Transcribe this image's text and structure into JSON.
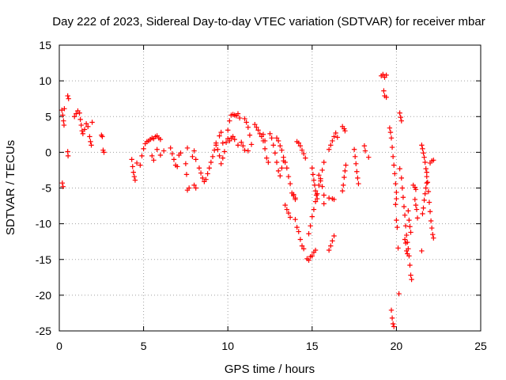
{
  "chart_data": {
    "type": "scatter",
    "title": "Day 222 of 2023, Sidereal Day-to-day VTEC variation (SDTVAR) for receiver mbar",
    "xlabel": "GPS time / hours",
    "ylabel": "SDTVAR / TECUs",
    "xlim": [
      0,
      25
    ],
    "ylim": [
      -25,
      15
    ],
    "x_ticks": [
      0,
      5,
      10,
      15,
      20,
      25
    ],
    "y_ticks": [
      15,
      10,
      5,
      0,
      -5,
      -10,
      -15,
      -20,
      -25
    ],
    "x_tick_labels": [
      "0",
      "5",
      "10",
      "15",
      "20",
      "25"
    ],
    "y_tick_labels": [
      "15",
      "10",
      "5",
      "0",
      "-5",
      "-10",
      "-15",
      "-20",
      "-25"
    ],
    "grid": true,
    "marker": "+",
    "series": [
      {
        "name": "SDTVAR",
        "color": "#ff0000",
        "points": [
          [
            0.15,
            5.9
          ],
          [
            0.2,
            5.2
          ],
          [
            0.25,
            4.4
          ],
          [
            0.28,
            3.8
          ],
          [
            0.3,
            6.1
          ],
          [
            0.18,
            -4.3
          ],
          [
            0.22,
            -4.8
          ],
          [
            0.5,
            7.9
          ],
          [
            0.55,
            7.5
          ],
          [
            0.5,
            0.1
          ],
          [
            0.52,
            -0.5
          ],
          [
            0.9,
            5.0
          ],
          [
            1.0,
            5.4
          ],
          [
            1.1,
            5.8
          ],
          [
            1.2,
            5.5
          ],
          [
            1.25,
            4.6
          ],
          [
            1.3,
            3.8
          ],
          [
            1.35,
            3.0
          ],
          [
            1.4,
            2.6
          ],
          [
            1.5,
            3.2
          ],
          [
            1.6,
            4.0
          ],
          [
            1.7,
            3.6
          ],
          [
            1.8,
            2.2
          ],
          [
            1.85,
            1.5
          ],
          [
            1.9,
            1.0
          ],
          [
            1.95,
            4.2
          ],
          [
            2.5,
            2.4
          ],
          [
            2.55,
            2.2
          ],
          [
            2.6,
            0.3
          ],
          [
            2.65,
            0.0
          ],
          [
            4.3,
            -1.0
          ],
          [
            4.35,
            -2.0
          ],
          [
            4.4,
            -2.8
          ],
          [
            4.45,
            -3.4
          ],
          [
            4.5,
            -3.9
          ],
          [
            4.6,
            -1.5
          ],
          [
            4.8,
            -1.8
          ],
          [
            4.9,
            -0.5
          ],
          [
            5.0,
            0.5
          ],
          [
            5.1,
            1.2
          ],
          [
            5.2,
            1.5
          ],
          [
            5.3,
            1.6
          ],
          [
            5.4,
            1.8
          ],
          [
            5.5,
            2.0
          ],
          [
            5.6,
            1.9
          ],
          [
            5.7,
            2.2
          ],
          [
            5.8,
            2.3
          ],
          [
            5.9,
            2.0
          ],
          [
            6.0,
            1.8
          ],
          [
            5.5,
            -0.5
          ],
          [
            5.6,
            -1.1
          ],
          [
            5.8,
            0.4
          ],
          [
            6.0,
            -0.4
          ],
          [
            6.2,
            0.2
          ],
          [
            6.6,
            0.6
          ],
          [
            6.7,
            -0.2
          ],
          [
            6.8,
            -1.0
          ],
          [
            6.9,
            -1.8
          ],
          [
            7.0,
            -2.0
          ],
          [
            7.1,
            -0.4
          ],
          [
            7.2,
            -0.1
          ],
          [
            7.5,
            -1.6
          ],
          [
            7.55,
            -3.1
          ],
          [
            7.6,
            -5.3
          ],
          [
            7.7,
            -5.0
          ],
          [
            7.6,
            0.6
          ],
          [
            7.9,
            -0.6
          ],
          [
            8.0,
            -4.6
          ],
          [
            8.1,
            -5.0
          ],
          [
            8.0,
            0.2
          ],
          [
            8.1,
            -1.0
          ],
          [
            8.3,
            -2.2
          ],
          [
            8.4,
            -2.9
          ],
          [
            8.5,
            -3.6
          ],
          [
            8.6,
            -4.1
          ],
          [
            8.7,
            -3.8
          ],
          [
            8.8,
            -3.0
          ],
          [
            8.9,
            -2.2
          ],
          [
            9.0,
            -1.4
          ],
          [
            9.1,
            -0.6
          ],
          [
            9.2,
            0.3
          ],
          [
            9.3,
            1.0
          ],
          [
            9.4,
            0.4
          ],
          [
            9.5,
            -0.5
          ],
          [
            9.6,
            -1.6
          ],
          [
            9.7,
            -0.8
          ],
          [
            9.3,
            1.3
          ],
          [
            9.5,
            2.3
          ],
          [
            9.6,
            2.8
          ],
          [
            9.7,
            1.3
          ],
          [
            9.8,
            0.1
          ],
          [
            9.9,
            1.4
          ],
          [
            10.0,
            3.1
          ],
          [
            10.1,
            4.4
          ],
          [
            10.2,
            5.2
          ],
          [
            10.3,
            5.3
          ],
          [
            10.4,
            5.2
          ],
          [
            10.5,
            5.1
          ],
          [
            10.6,
            5.4
          ],
          [
            10.7,
            4.8
          ],
          [
            10.0,
            1.9
          ],
          [
            10.1,
            1.6
          ],
          [
            10.2,
            2.0
          ],
          [
            10.3,
            2.2
          ],
          [
            10.4,
            1.8
          ],
          [
            10.6,
            1.0
          ],
          [
            10.8,
            1.4
          ],
          [
            10.9,
            0.9
          ],
          [
            11.0,
            0.3
          ],
          [
            11.0,
            4.7
          ],
          [
            11.1,
            4.2
          ],
          [
            11.2,
            3.5
          ],
          [
            11.3,
            2.4
          ],
          [
            11.4,
            1.1
          ],
          [
            11.2,
            0.2
          ],
          [
            11.6,
            3.9
          ],
          [
            11.7,
            3.5
          ],
          [
            11.8,
            3.1
          ],
          [
            11.9,
            2.6
          ],
          [
            12.0,
            2.2
          ],
          [
            12.1,
            1.6
          ],
          [
            12.2,
            0.5
          ],
          [
            12.3,
            -0.8
          ],
          [
            12.4,
            -1.4
          ],
          [
            12.1,
            2.5
          ],
          [
            12.2,
            1.6
          ],
          [
            12.5,
            2.6
          ],
          [
            12.6,
            2.0
          ],
          [
            12.7,
            1.0
          ],
          [
            12.8,
            -0.1
          ],
          [
            12.9,
            -1.4
          ],
          [
            13.0,
            -2.6
          ],
          [
            13.1,
            -3.3
          ],
          [
            13.2,
            -2.2
          ],
          [
            13.3,
            -1.2
          ],
          [
            12.9,
            2.0
          ],
          [
            13.0,
            1.6
          ],
          [
            13.1,
            0.9
          ],
          [
            13.2,
            0.3
          ],
          [
            13.3,
            -0.7
          ],
          [
            13.4,
            -1.4
          ],
          [
            13.5,
            -2.2
          ],
          [
            13.6,
            -3.4
          ],
          [
            13.7,
            -4.4
          ],
          [
            13.8,
            -5.7
          ],
          [
            13.9,
            -6.1
          ],
          [
            14.0,
            -6.4
          ],
          [
            13.4,
            -7.4
          ],
          [
            13.5,
            -8.0
          ],
          [
            13.6,
            -8.5
          ],
          [
            13.7,
            -9.1
          ],
          [
            13.9,
            -5.9
          ],
          [
            14.0,
            -6.6
          ],
          [
            14.0,
            -9.4
          ],
          [
            14.1,
            -10.5
          ],
          [
            14.2,
            -11.1
          ],
          [
            14.3,
            -12.2
          ],
          [
            14.4,
            -13.1
          ],
          [
            14.5,
            -13.5
          ],
          [
            14.1,
            1.5
          ],
          [
            14.2,
            1.3
          ],
          [
            14.3,
            0.9
          ],
          [
            14.4,
            0.3
          ],
          [
            14.5,
            -0.2
          ],
          [
            14.6,
            -0.8
          ],
          [
            14.7,
            -14.9
          ],
          [
            14.8,
            -15.1
          ],
          [
            14.9,
            -14.6
          ],
          [
            15.0,
            -14.5
          ],
          [
            15.1,
            -14.0
          ],
          [
            15.2,
            -13.7
          ],
          [
            14.8,
            -11.4
          ],
          [
            14.9,
            -10.3
          ],
          [
            15.0,
            -9.0
          ],
          [
            15.1,
            -8.0
          ],
          [
            15.2,
            -6.9
          ],
          [
            15.3,
            -5.8
          ],
          [
            15.4,
            -4.6
          ],
          [
            15.5,
            -3.7
          ],
          [
            15.6,
            -2.5
          ],
          [
            15.7,
            -1.4
          ],
          [
            15.0,
            -2.2
          ],
          [
            15.05,
            -3.1
          ],
          [
            15.1,
            -3.9
          ],
          [
            15.15,
            -4.6
          ],
          [
            15.2,
            -5.4
          ],
          [
            15.25,
            -6.0
          ],
          [
            15.3,
            -6.5
          ],
          [
            15.4,
            -3.2
          ],
          [
            15.5,
            -4.0
          ],
          [
            15.6,
            -4.8
          ],
          [
            15.7,
            -6.0
          ],
          [
            15.7,
            -7.2
          ],
          [
            16.0,
            -13.7
          ],
          [
            16.1,
            -13.1
          ],
          [
            16.2,
            -12.4
          ],
          [
            16.3,
            -11.7
          ],
          [
            16.0,
            -6.4
          ],
          [
            16.2,
            -6.5
          ],
          [
            16.3,
            -6.6
          ],
          [
            16.0,
            0.4
          ],
          [
            16.1,
            1.0
          ],
          [
            16.2,
            1.6
          ],
          [
            16.3,
            2.2
          ],
          [
            16.4,
            2.7
          ],
          [
            16.5,
            2.1
          ],
          [
            16.8,
            3.6
          ],
          [
            16.9,
            3.3
          ],
          [
            16.95,
            3.0
          ],
          [
            16.8,
            -5.4
          ],
          [
            16.85,
            -4.6
          ],
          [
            16.9,
            -3.5
          ],
          [
            16.95,
            -2.6
          ],
          [
            17.0,
            -1.8
          ],
          [
            17.5,
            0.4
          ],
          [
            17.55,
            -0.6
          ],
          [
            17.6,
            -1.6
          ],
          [
            17.65,
            -2.7
          ],
          [
            17.7,
            -3.6
          ],
          [
            17.75,
            -4.4
          ],
          [
            18.1,
            0.9
          ],
          [
            18.15,
            0.2
          ],
          [
            18.35,
            -0.7
          ],
          [
            19.1,
            10.7
          ],
          [
            19.2,
            10.9
          ],
          [
            19.3,
            10.5
          ],
          [
            19.4,
            10.8
          ],
          [
            19.25,
            8.6
          ],
          [
            19.3,
            7.9
          ],
          [
            19.4,
            7.7
          ],
          [
            19.6,
            3.4
          ],
          [
            19.65,
            2.8
          ],
          [
            19.7,
            2.0
          ],
          [
            19.75,
            0.7
          ],
          [
            19.8,
            -0.6
          ],
          [
            19.85,
            -1.8
          ],
          [
            19.9,
            -3.0
          ],
          [
            19.95,
            -4.4
          ],
          [
            20.0,
            -5.6
          ],
          [
            20.0,
            -6.5
          ],
          [
            19.95,
            -7.3
          ],
          [
            19.7,
            -22.1
          ],
          [
            19.75,
            -23.2
          ],
          [
            19.8,
            -24.0
          ],
          [
            19.85,
            -24.4
          ],
          [
            20.0,
            -9.5
          ],
          [
            20.05,
            -10.5
          ],
          [
            20.1,
            -13.4
          ],
          [
            20.15,
            -19.8
          ],
          [
            20.2,
            5.5
          ],
          [
            20.25,
            4.9
          ],
          [
            20.3,
            4.4
          ],
          [
            20.2,
            -2.3
          ],
          [
            20.3,
            -3.6
          ],
          [
            20.35,
            -5.0
          ],
          [
            20.4,
            -6.3
          ],
          [
            20.45,
            -7.6
          ],
          [
            20.5,
            -8.8
          ],
          [
            20.55,
            -10.3
          ],
          [
            20.6,
            -11.6
          ],
          [
            20.65,
            -12.6
          ],
          [
            20.7,
            -13.5
          ],
          [
            20.75,
            -14.5
          ],
          [
            20.8,
            -15.8
          ],
          [
            20.85,
            -17.2
          ],
          [
            20.9,
            -17.8
          ],
          [
            20.5,
            -12.2
          ],
          [
            20.55,
            -12.7
          ],
          [
            20.6,
            -13.8
          ],
          [
            20.65,
            -14.2
          ],
          [
            20.7,
            -8.2
          ],
          [
            20.75,
            -9.5
          ],
          [
            20.8,
            -10.4
          ],
          [
            20.85,
            -11.2
          ],
          [
            21.0,
            -4.6
          ],
          [
            21.1,
            -4.9
          ],
          [
            21.15,
            -5.2
          ],
          [
            21.1,
            -6.6
          ],
          [
            21.15,
            -7.4
          ],
          [
            21.2,
            -8.0
          ],
          [
            21.25,
            -9.2
          ],
          [
            21.5,
            -13.8
          ],
          [
            21.55,
            -8.6
          ],
          [
            21.6,
            -7.8
          ],
          [
            21.65,
            -6.7
          ],
          [
            21.7,
            -5.8
          ],
          [
            21.75,
            -5.0
          ],
          [
            21.8,
            -4.3
          ],
          [
            21.5,
            1.0
          ],
          [
            21.55,
            0.5
          ],
          [
            21.6,
            -0.1
          ],
          [
            21.65,
            -0.7
          ],
          [
            21.7,
            -1.4
          ],
          [
            21.75,
            -2.3
          ],
          [
            21.8,
            -3.4
          ],
          [
            21.8,
            -2.8
          ],
          [
            21.85,
            -4.2
          ],
          [
            21.9,
            -5.5
          ],
          [
            21.95,
            -7.0
          ],
          [
            22.0,
            -8.3
          ],
          [
            22.05,
            -9.6
          ],
          [
            22.1,
            -10.6
          ],
          [
            22.15,
            -11.5
          ],
          [
            22.2,
            -12.0
          ],
          [
            22.0,
            -1.5
          ],
          [
            22.1,
            -1.2
          ],
          [
            22.2,
            -1.1
          ]
        ]
      }
    ]
  }
}
